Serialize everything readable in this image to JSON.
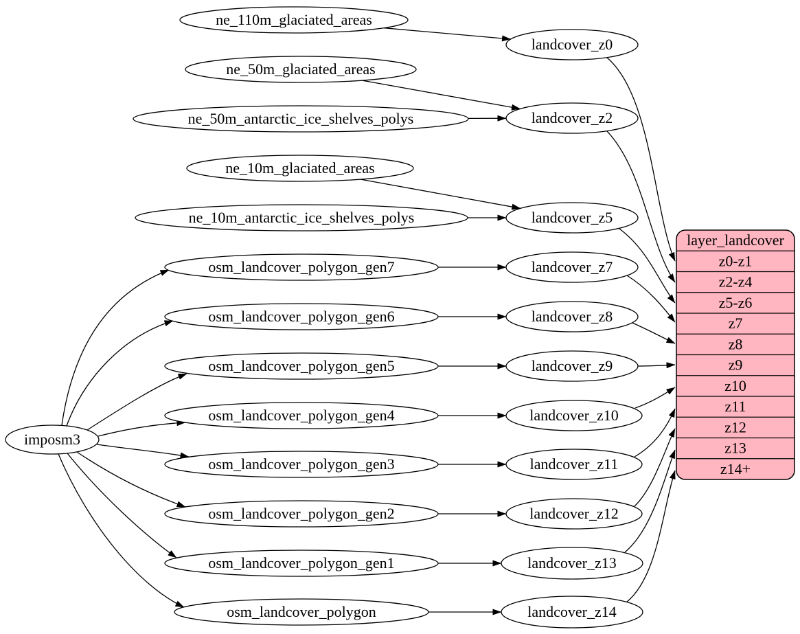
{
  "diagram": {
    "background_color": "#ffffff",
    "node_fill_color": "#ffffff",
    "node_border_color": "#000000",
    "edge_color": "#000000",
    "text_color": "#000000",
    "record_fill_color": "#ffb6c1",
    "nodes": [
      {
        "id": "imposm3",
        "label": "imposm3"
      },
      {
        "id": "ne_110m_glaciated_areas",
        "label": "ne_110m_glaciated_areas"
      },
      {
        "id": "ne_50m_glaciated_areas",
        "label": "ne_50m_glaciated_areas"
      },
      {
        "id": "ne_50m_antarctic_ice_shelves_polys",
        "label": "ne_50m_antarctic_ice_shelves_polys"
      },
      {
        "id": "ne_10m_glaciated_areas",
        "label": "ne_10m_glaciated_areas"
      },
      {
        "id": "ne_10m_antarctic_ice_shelves_polys",
        "label": "ne_10m_antarctic_ice_shelves_polys"
      },
      {
        "id": "osm_landcover_polygon_gen7",
        "label": "osm_landcover_polygon_gen7"
      },
      {
        "id": "osm_landcover_polygon_gen6",
        "label": "osm_landcover_polygon_gen6"
      },
      {
        "id": "osm_landcover_polygon_gen5",
        "label": "osm_landcover_polygon_gen5"
      },
      {
        "id": "osm_landcover_polygon_gen4",
        "label": "osm_landcover_polygon_gen4"
      },
      {
        "id": "osm_landcover_polygon_gen3",
        "label": "osm_landcover_polygon_gen3"
      },
      {
        "id": "osm_landcover_polygon_gen2",
        "label": "osm_landcover_polygon_gen2"
      },
      {
        "id": "osm_landcover_polygon_gen1",
        "label": "osm_landcover_polygon_gen1"
      },
      {
        "id": "osm_landcover_polygon",
        "label": "osm_landcover_polygon"
      },
      {
        "id": "landcover_z0",
        "label": "landcover_z0"
      },
      {
        "id": "landcover_z2",
        "label": "landcover_z2"
      },
      {
        "id": "landcover_z5",
        "label": "landcover_z5"
      },
      {
        "id": "landcover_z7",
        "label": "landcover_z7"
      },
      {
        "id": "landcover_z8",
        "label": "landcover_z8"
      },
      {
        "id": "landcover_z9",
        "label": "landcover_z9"
      },
      {
        "id": "landcover_z10",
        "label": "landcover_z10"
      },
      {
        "id": "landcover_z11",
        "label": "landcover_z11"
      },
      {
        "id": "landcover_z12",
        "label": "landcover_z12"
      },
      {
        "id": "landcover_z13",
        "label": "landcover_z13"
      },
      {
        "id": "landcover_z14",
        "label": "landcover_z14"
      }
    ],
    "record": {
      "id": "layer_landcover",
      "title": "layer_landcover",
      "rows": [
        "z0-z1",
        "z2-z4",
        "z5-z6",
        "z7",
        "z8",
        "z9",
        "z10",
        "z11",
        "z12",
        "z13",
        "z14+"
      ]
    },
    "edges": [
      {
        "from": "imposm3",
        "to": "osm_landcover_polygon_gen7"
      },
      {
        "from": "imposm3",
        "to": "osm_landcover_polygon_gen6"
      },
      {
        "from": "imposm3",
        "to": "osm_landcover_polygon_gen5"
      },
      {
        "from": "imposm3",
        "to": "osm_landcover_polygon_gen4"
      },
      {
        "from": "imposm3",
        "to": "osm_landcover_polygon_gen3"
      },
      {
        "from": "imposm3",
        "to": "osm_landcover_polygon_gen2"
      },
      {
        "from": "imposm3",
        "to": "osm_landcover_polygon_gen1"
      },
      {
        "from": "imposm3",
        "to": "osm_landcover_polygon"
      },
      {
        "from": "ne_110m_glaciated_areas",
        "to": "landcover_z0"
      },
      {
        "from": "ne_50m_glaciated_areas",
        "to": "landcover_z2"
      },
      {
        "from": "ne_50m_antarctic_ice_shelves_polys",
        "to": "landcover_z2"
      },
      {
        "from": "ne_10m_glaciated_areas",
        "to": "landcover_z5"
      },
      {
        "from": "ne_10m_antarctic_ice_shelves_polys",
        "to": "landcover_z5"
      },
      {
        "from": "osm_landcover_polygon_gen7",
        "to": "landcover_z7"
      },
      {
        "from": "osm_landcover_polygon_gen6",
        "to": "landcover_z8"
      },
      {
        "from": "osm_landcover_polygon_gen5",
        "to": "landcover_z9"
      },
      {
        "from": "osm_landcover_polygon_gen4",
        "to": "landcover_z10"
      },
      {
        "from": "osm_landcover_polygon_gen3",
        "to": "landcover_z11"
      },
      {
        "from": "osm_landcover_polygon_gen2",
        "to": "landcover_z12"
      },
      {
        "from": "osm_landcover_polygon_gen1",
        "to": "landcover_z13"
      },
      {
        "from": "osm_landcover_polygon",
        "to": "landcover_z14"
      },
      {
        "from": "landcover_z0",
        "to": "layer_landcover",
        "row": "z0-z1"
      },
      {
        "from": "landcover_z2",
        "to": "layer_landcover",
        "row": "z2-z4"
      },
      {
        "from": "landcover_z5",
        "to": "layer_landcover",
        "row": "z5-z6"
      },
      {
        "from": "landcover_z7",
        "to": "layer_landcover",
        "row": "z7"
      },
      {
        "from": "landcover_z8",
        "to": "layer_landcover",
        "row": "z8"
      },
      {
        "from": "landcover_z9",
        "to": "layer_landcover",
        "row": "z9"
      },
      {
        "from": "landcover_z10",
        "to": "layer_landcover",
        "row": "z10"
      },
      {
        "from": "landcover_z11",
        "to": "layer_landcover",
        "row": "z11"
      },
      {
        "from": "landcover_z12",
        "to": "layer_landcover",
        "row": "z12"
      },
      {
        "from": "landcover_z13",
        "to": "layer_landcover",
        "row": "z13"
      },
      {
        "from": "landcover_z14",
        "to": "layer_landcover",
        "row": "z14+"
      }
    ]
  }
}
